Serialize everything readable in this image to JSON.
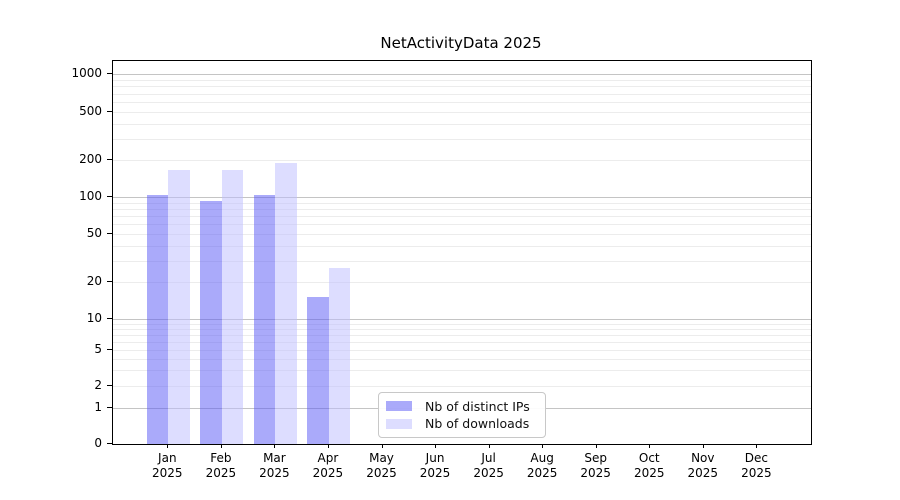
{
  "chart_data": {
    "type": "bar",
    "title": "NetActivityData 2025",
    "categories": [
      "Jan 2025",
      "Feb 2025",
      "Mar 2025",
      "Apr 2025",
      "May 2025",
      "Jun 2025",
      "Jul 2025",
      "Aug 2025",
      "Sep 2025",
      "Oct 2025",
      "Nov 2025",
      "Dec 2025"
    ],
    "series": [
      {
        "name": "Nb of distinct IPs",
        "color": "#a9a9f6",
        "fill": "rgba(85,85,245,0.5)",
        "values": [
          103,
          92,
          103,
          15,
          0,
          0,
          0,
          0,
          0,
          0,
          0,
          0
        ]
      },
      {
        "name": "Nb of downloads",
        "color": "#d9d9f8",
        "fill": "rgba(187,187,255,0.5)",
        "values": [
          166,
          166,
          190,
          26,
          0,
          0,
          0,
          0,
          0,
          0,
          0,
          0
        ]
      }
    ],
    "yticks": [
      0,
      1,
      2,
      5,
      10,
      20,
      50,
      100,
      200,
      500,
      1000
    ],
    "yscale": "log-like (linear 0-1, compressed log above)",
    "ylim": [
      0,
      1300
    ],
    "xlabel": "",
    "ylabel": "",
    "grid": true,
    "legend_position": "lower center"
  }
}
